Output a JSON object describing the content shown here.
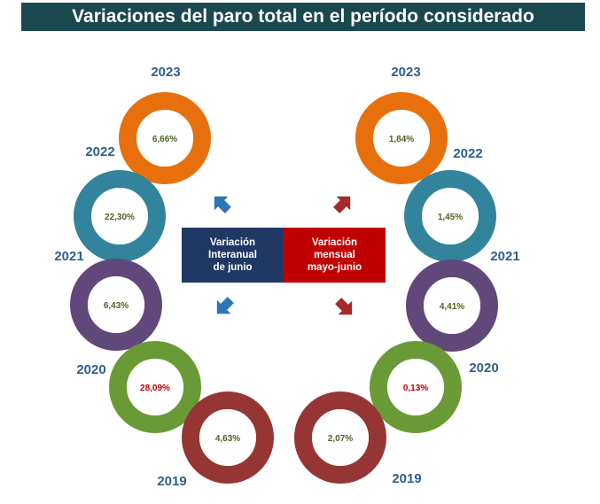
{
  "title": "Variaciones del paro total en el período considerado",
  "center": {
    "left_lines": [
      "Variación",
      "Interanual",
      "de junio"
    ],
    "right_lines": [
      "Variación",
      "mensual",
      "mayo-junio"
    ],
    "left_color": "#1f3864",
    "right_color": "#c00000"
  },
  "colors": {
    "title_bg": "#19484f",
    "year_label": "#2e5f8a",
    "value_text": "#4f6228",
    "value_text_highlight": "#c00000",
    "arrow_left": "#2e75b6",
    "arrow_right": "#a52a2a",
    "ring_2023": "#e8700c",
    "ring_2022": "#31849b",
    "ring_2021": "#60497a",
    "ring_2020": "#6a9a35",
    "ring_2019": "#963634"
  },
  "chart_data": [
    {
      "type": "table",
      "title": "Variación Interanual de junio",
      "categories": [
        "2023",
        "2022",
        "2021",
        "2020",
        "2019"
      ],
      "labels": [
        "6,66%",
        "22,30%",
        "6,43%",
        "28,09%",
        "4,63%"
      ],
      "values": [
        6.66,
        22.3,
        6.43,
        28.09,
        4.63
      ],
      "unit": "%"
    },
    {
      "type": "table",
      "title": "Variación mensual mayo-junio",
      "categories": [
        "2023",
        "2022",
        "2021",
        "2020",
        "2019"
      ],
      "labels": [
        "1,84%",
        "1,45%",
        "4,41%",
        "0,13%",
        "2,07%"
      ],
      "values": [
        1.84,
        1.45,
        4.41,
        0.13,
        2.07
      ],
      "unit": "%"
    }
  ]
}
